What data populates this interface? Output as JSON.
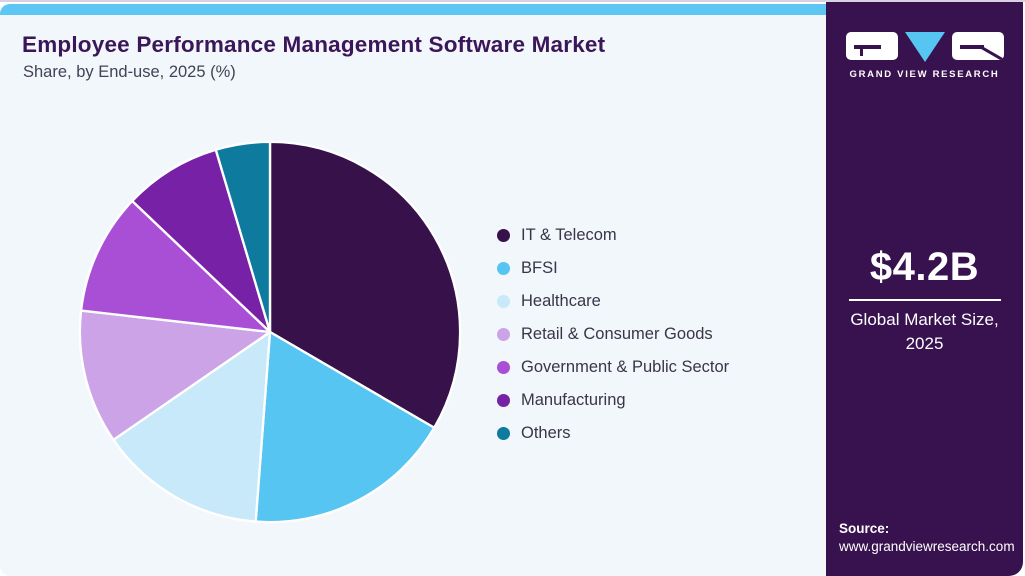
{
  "header": {
    "title": "Employee Performance Management Software Market",
    "subtitle": "Share, by End-use, 2025 (%)"
  },
  "chart_data": {
    "type": "pie",
    "title": "Employee Performance Management Software Market Share, by End-use, 2025 (%)",
    "unit": "%",
    "start_angle_deg": 0,
    "direction": "clockwise",
    "legend_position": "right",
    "series": [
      {
        "label": "IT & Telecom",
        "value": 33.4,
        "color": "#36114a"
      },
      {
        "label": "BFSI",
        "value": 17.8,
        "color": "#56c5f2"
      },
      {
        "label": "Healthcare",
        "value": 14.2,
        "color": "#c7e9f9"
      },
      {
        "label": "Retail & Consumer Goods",
        "value": 11.4,
        "color": "#cda3e8"
      },
      {
        "label": "Government & Public Sector",
        "value": 10.3,
        "color": "#a94fd6"
      },
      {
        "label": "Manufacturing",
        "value": 8.3,
        "color": "#7722a6"
      },
      {
        "label": "Others",
        "value": 4.6,
        "color": "#0e7a9e"
      }
    ]
  },
  "sidebar": {
    "logo": {
      "brand": "GRAND VIEW RESEARCH"
    },
    "market_size": "$4.2B",
    "market_size_caption": "Global Market Size, 2025",
    "source_label": "Source:",
    "source_url": "www.grandviewresearch.com"
  },
  "colors": {
    "topbar": "#5ec6f2",
    "panel_background": "#f2f7fb",
    "sidebar_background": "#38124e",
    "title_text": "#3b1658",
    "accent_blue": "#56c5f2"
  }
}
